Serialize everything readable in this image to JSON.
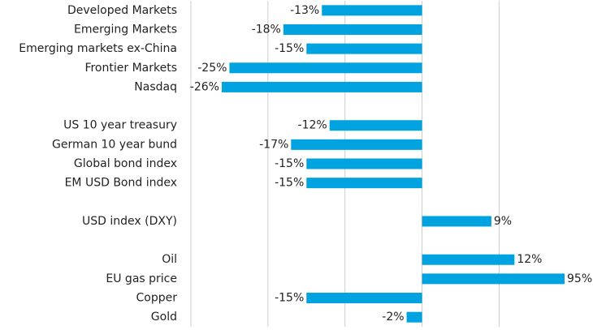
{
  "chart_data": {
    "type": "bar",
    "orientation": "horizontal",
    "categories": [
      "Developed Markets",
      "Emerging Markets",
      "Emerging markets ex-China",
      "Frontier Markets",
      "Nasdaq",
      null,
      "US 10 year treasury",
      "German 10 year bund",
      "Global bond index",
      "EM USD Bond index",
      null,
      "USD index (DXY)",
      null,
      "Oil",
      "EU gas price",
      "Copper",
      "Gold"
    ],
    "values": [
      -13,
      -18,
      -15,
      -25,
      -26,
      null,
      -12,
      -17,
      -15,
      -15,
      null,
      9,
      null,
      12,
      95,
      -15,
      -2
    ],
    "value_labels": [
      "-13%",
      "-18%",
      "-15%",
      "-25%",
      "-26%",
      null,
      "-12%",
      "-17%",
      "-15%",
      "-15%",
      null,
      "9%",
      null,
      "12%",
      "95%",
      "-15%",
      "-2%"
    ],
    "color": "#00a3e0",
    "xlim": [
      -30,
      18.5
    ],
    "xticks": [
      -30,
      -20,
      -10,
      0,
      10
    ],
    "grid": true
  }
}
